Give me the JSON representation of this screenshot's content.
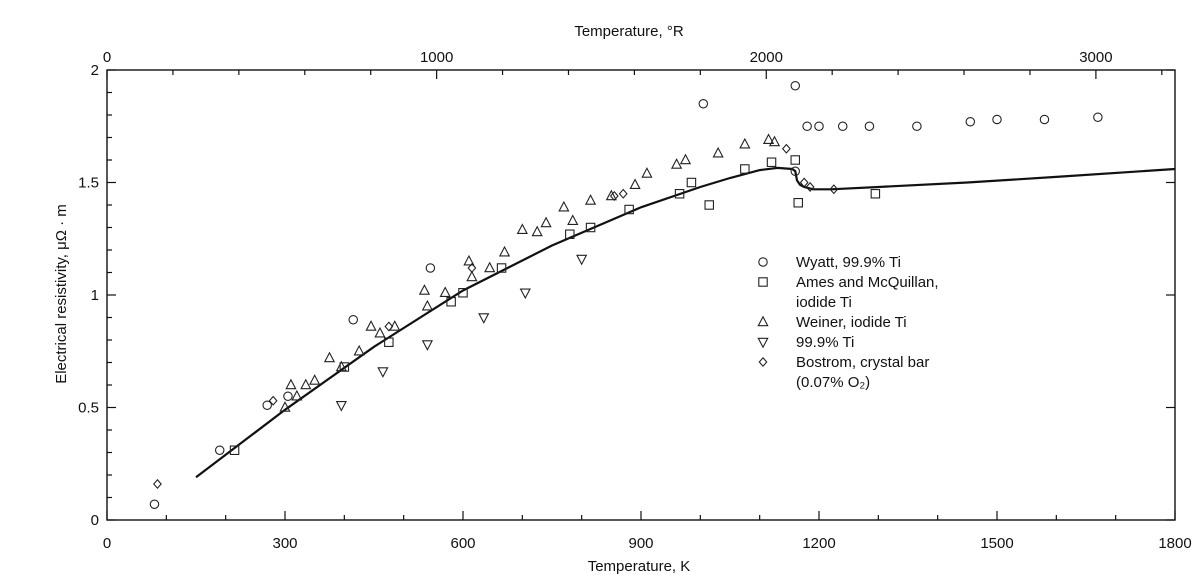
{
  "chart_data": {
    "type": "scatter",
    "top_axis": {
      "label": "Temperature, °R",
      "ticks": [
        0,
        1000,
        2000,
        3000
      ],
      "tick_labels": [
        "0",
        "1000",
        "2000",
        "3000"
      ]
    },
    "xlabel": "Temperature, K",
    "ylabel": "Electrical resistivity, μΩ · m",
    "xlim": [
      0,
      1800
    ],
    "ylim": [
      0,
      2
    ],
    "x_ticks": [
      0,
      300,
      600,
      900,
      1200,
      1500,
      1800
    ],
    "x_tick_labels": [
      "0",
      "300",
      "600",
      "900",
      "1200",
      "1500",
      "1800"
    ],
    "y_ticks": [
      0,
      0.5,
      1,
      1.5,
      2
    ],
    "y_tick_labels": [
      "0",
      "0.5",
      "1",
      "1.5",
      "2"
    ],
    "legend_position": "right-center",
    "legend": [
      {
        "marker": "circle",
        "lines": [
          "Wyatt, 99.9% Ti"
        ]
      },
      {
        "marker": "square",
        "lines": [
          "Ames and McQuillan,",
          "iodide Ti"
        ]
      },
      {
        "marker": "triangle-up",
        "lines": [
          "Weiner, iodide Ti"
        ]
      },
      {
        "marker": "triangle-down",
        "lines": [
          "99.9% Ti"
        ]
      },
      {
        "marker": "diamond",
        "lines": [
          "Bostrom, crystal bar",
          "(0.07% O₂)"
        ]
      }
    ],
    "series": [
      {
        "marker": "circle",
        "points": [
          [
            80,
            0.07
          ],
          [
            190,
            0.31
          ],
          [
            270,
            0.51
          ],
          [
            305,
            0.55
          ],
          [
            415,
            0.89
          ],
          [
            545,
            1.12
          ],
          [
            1005,
            1.85
          ],
          [
            1160,
            1.93
          ],
          [
            1160,
            1.55
          ],
          [
            1180,
            1.75
          ],
          [
            1200,
            1.75
          ],
          [
            1240,
            1.75
          ],
          [
            1285,
            1.75
          ],
          [
            1365,
            1.75
          ],
          [
            1455,
            1.77
          ],
          [
            1500,
            1.78
          ],
          [
            1580,
            1.78
          ],
          [
            1670,
            1.79
          ]
        ]
      },
      {
        "marker": "square",
        "points": [
          [
            215,
            0.31
          ],
          [
            400,
            0.68
          ],
          [
            475,
            0.79
          ],
          [
            580,
            0.97
          ],
          [
            600,
            1.01
          ],
          [
            665,
            1.12
          ],
          [
            780,
            1.27
          ],
          [
            815,
            1.3
          ],
          [
            880,
            1.38
          ],
          [
            965,
            1.45
          ],
          [
            985,
            1.5
          ],
          [
            1015,
            1.4
          ],
          [
            1075,
            1.56
          ],
          [
            1120,
            1.59
          ],
          [
            1160,
            1.6
          ],
          [
            1165,
            1.41
          ],
          [
            1295,
            1.45
          ]
        ]
      },
      {
        "marker": "triangle-up",
        "points": [
          [
            300,
            0.5
          ],
          [
            310,
            0.6
          ],
          [
            320,
            0.55
          ],
          [
            335,
            0.6
          ],
          [
            350,
            0.62
          ],
          [
            375,
            0.72
          ],
          [
            395,
            0.68
          ],
          [
            425,
            0.75
          ],
          [
            445,
            0.86
          ],
          [
            460,
            0.83
          ],
          [
            485,
            0.86
          ],
          [
            535,
            1.02
          ],
          [
            540,
            0.95
          ],
          [
            570,
            1.01
          ],
          [
            610,
            1.15
          ],
          [
            615,
            1.08
          ],
          [
            645,
            1.12
          ],
          [
            670,
            1.19
          ],
          [
            700,
            1.29
          ],
          [
            725,
            1.28
          ],
          [
            740,
            1.32
          ],
          [
            770,
            1.39
          ],
          [
            785,
            1.33
          ],
          [
            815,
            1.42
          ],
          [
            850,
            1.44
          ],
          [
            890,
            1.49
          ],
          [
            910,
            1.54
          ],
          [
            960,
            1.58
          ],
          [
            975,
            1.6
          ],
          [
            1030,
            1.63
          ],
          [
            1075,
            1.67
          ],
          [
            1115,
            1.69
          ],
          [
            1125,
            1.68
          ]
        ]
      },
      {
        "marker": "triangle-down",
        "points": [
          [
            395,
            0.51
          ],
          [
            465,
            0.66
          ],
          [
            540,
            0.78
          ],
          [
            635,
            0.9
          ],
          [
            705,
            1.01
          ],
          [
            800,
            1.16
          ]
        ]
      },
      {
        "marker": "diamond",
        "points": [
          [
            85,
            0.16
          ],
          [
            280,
            0.53
          ],
          [
            475,
            0.86
          ],
          [
            615,
            1.12
          ],
          [
            855,
            1.44
          ],
          [
            870,
            1.45
          ],
          [
            1145,
            1.65
          ],
          [
            1175,
            1.5
          ],
          [
            1185,
            1.48
          ],
          [
            1225,
            1.47
          ]
        ]
      }
    ],
    "curve": [
      [
        150,
        0.19
      ],
      [
        300,
        0.49
      ],
      [
        450,
        0.77
      ],
      [
        600,
        1.02
      ],
      [
        750,
        1.22
      ],
      [
        900,
        1.39
      ],
      [
        1000,
        1.48
      ],
      [
        1050,
        1.52
      ],
      [
        1100,
        1.555
      ],
      [
        1130,
        1.565
      ],
      [
        1155,
        1.56
      ],
      [
        1160,
        1.55
      ],
      [
        1163,
        1.51
      ],
      [
        1168,
        1.49
      ],
      [
        1175,
        1.48
      ],
      [
        1190,
        1.47
      ],
      [
        1220,
        1.47
      ],
      [
        1300,
        1.48
      ],
      [
        1450,
        1.5
      ],
      [
        1600,
        1.525
      ],
      [
        1800,
        1.56
      ]
    ]
  }
}
